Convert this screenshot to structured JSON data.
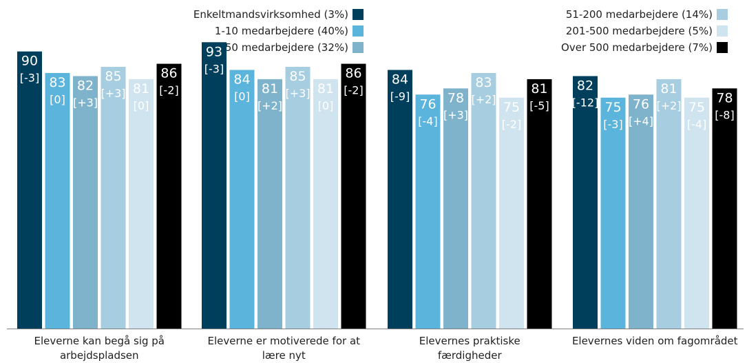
{
  "chart_data": {
    "type": "bar",
    "categories": [
      [
        "Eleverne kan begå sig på",
        "arbejdspladsen"
      ],
      [
        "Eleverne er motiverede for at",
        "lære nyt"
      ],
      [
        "Elevernes praktiske",
        "færdigheder"
      ],
      [
        "Elevernes viden om fagområdet"
      ]
    ],
    "ylim": [
      0,
      100
    ],
    "legend_position": "top",
    "series": [
      {
        "name": "Enkeltmandsvirksomhed (3%)",
        "color": "#003f5c",
        "label_color": "#ffffff",
        "values": [
          90,
          93,
          84,
          82
        ],
        "changes": [
          "[-3]",
          "[-3]",
          "[-9]",
          "[-12]"
        ]
      },
      {
        "name": "1-10 medarbejdere (40%)",
        "color": "#5ab4dc",
        "label_color": "#ffffff",
        "values": [
          83,
          84,
          76,
          75
        ],
        "changes": [
          "[0]",
          "[0]",
          "[-4]",
          "[-3]"
        ]
      },
      {
        "name": "11-50 medarbejdere (32%)",
        "color": "#7fb3cc",
        "label_color": "#ffffff",
        "values": [
          82,
          81,
          78,
          76
        ],
        "changes": [
          "[+3]",
          "[+2]",
          "[+3]",
          "[+4]"
        ]
      },
      {
        "name": "51-200 medarbejdere (14%)",
        "color": "#a6cde0",
        "label_color": "#ffffff",
        "values": [
          85,
          85,
          83,
          81
        ],
        "changes": [
          "[+3]",
          "[+3]",
          "[+2]",
          "[+2]"
        ]
      },
      {
        "name": "201-500 medarbejdere (5%)",
        "color": "#cfe4ef",
        "label_color": "#ffffff",
        "values": [
          81,
          81,
          75,
          75
        ],
        "changes": [
          "[0]",
          "[0]",
          "[-2]",
          "[-4]"
        ]
      },
      {
        "name": "Over 500 medarbejdere (7%)",
        "color": "#000000",
        "label_color": "#ffffff",
        "values": [
          86,
          86,
          81,
          78
        ],
        "changes": [
          "[-2]",
          "[-2]",
          "[-5]",
          "[-8]"
        ]
      }
    ]
  }
}
